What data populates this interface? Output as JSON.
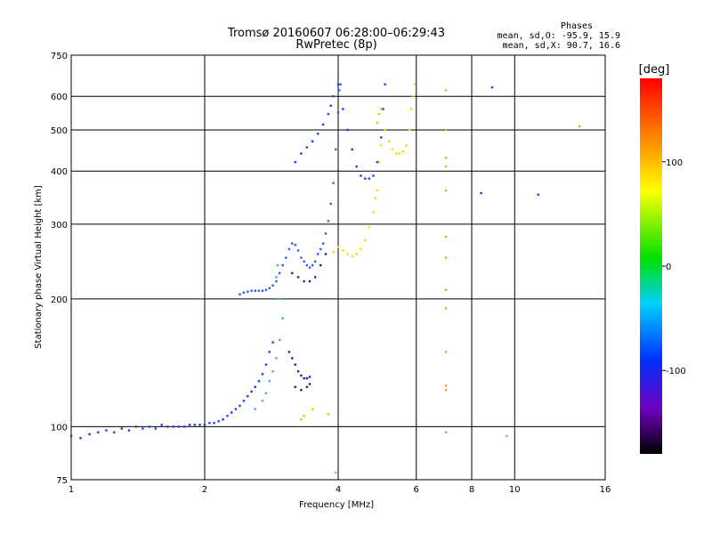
{
  "chart_data": {
    "type": "scatter",
    "title": "Tromsø 20160607 06:28:00–06:29:43",
    "subtitle": "RwPretec (8p)",
    "xlabel": "Frequency [MHz]",
    "ylabel": "Stationary phase Virtual Height [km]",
    "x_scale": "log",
    "y_scale": "log",
    "xlim": [
      1,
      16
    ],
    "ylim": [
      75,
      750
    ],
    "x_ticks": [
      1,
      2,
      4,
      6,
      8,
      10,
      16
    ],
    "y_ticks": [
      75,
      100,
      200,
      300,
      400,
      500,
      600,
      750
    ],
    "grid": true,
    "stats": {
      "title": "Phases",
      "line_o": "mean, sd,O: -95.9, 15.9",
      "line_x": "mean, sd,X:  90.7, 16.6"
    },
    "colorbar": {
      "label": "[deg]",
      "min": -180,
      "max": 180,
      "ticks": [
        100,
        0,
        -100
      ]
    },
    "point_groups": [
      {
        "color": "#1a3cf0",
        "points": [
          [
            1,
            95
          ],
          [
            1.05,
            94
          ],
          [
            1.1,
            96
          ],
          [
            1.15,
            97
          ],
          [
            1.2,
            98
          ],
          [
            1.25,
            97
          ],
          [
            1.3,
            99
          ],
          [
            1.35,
            98
          ],
          [
            1.4,
            100
          ],
          [
            1.45,
            99
          ],
          [
            1.5,
            100
          ],
          [
            1.55,
            99
          ],
          [
            1.6,
            101
          ],
          [
            1.65,
            100
          ],
          [
            1.7,
            100
          ],
          [
            1.75,
            100
          ],
          [
            1.8,
            100
          ],
          [
            1.85,
            101
          ],
          [
            1.9,
            101
          ],
          [
            1.95,
            101
          ],
          [
            2.0,
            101
          ],
          [
            2.05,
            102
          ],
          [
            2.1,
            102
          ],
          [
            2.15,
            103
          ],
          [
            2.2,
            104
          ],
          [
            2.25,
            106
          ],
          [
            2.3,
            108
          ],
          [
            2.35,
            110
          ],
          [
            2.4,
            112
          ],
          [
            2.45,
            115
          ],
          [
            2.5,
            118
          ],
          [
            2.55,
            121
          ],
          [
            2.6,
            124
          ],
          [
            2.65,
            128
          ],
          [
            2.7,
            133
          ],
          [
            2.75,
            140
          ],
          [
            2.8,
            150
          ],
          [
            2.85,
            158
          ]
        ]
      },
      {
        "color": "#2a5cff",
        "points": [
          [
            2.4,
            205
          ],
          [
            2.45,
            207
          ],
          [
            2.5,
            208
          ],
          [
            2.55,
            209
          ],
          [
            2.6,
            209
          ],
          [
            2.65,
            209
          ],
          [
            2.7,
            209
          ],
          [
            2.75,
            210
          ],
          [
            2.8,
            212
          ],
          [
            2.85,
            215
          ],
          [
            2.9,
            220
          ],
          [
            2.95,
            230
          ],
          [
            3.0,
            240
          ],
          [
            3.05,
            250
          ],
          [
            3.1,
            262
          ],
          [
            3.15,
            270
          ],
          [
            3.2,
            268
          ],
          [
            3.25,
            260
          ],
          [
            3.3,
            250
          ],
          [
            3.35,
            245
          ],
          [
            3.4,
            240
          ],
          [
            3.45,
            237
          ],
          [
            3.5,
            240
          ],
          [
            3.55,
            245
          ],
          [
            3.6,
            255
          ],
          [
            3.65,
            262
          ],
          [
            3.7,
            270
          ],
          [
            3.75,
            285
          ],
          [
            3.8,
            305
          ],
          [
            3.85,
            335
          ],
          [
            3.9,
            375
          ],
          [
            3.95,
            450
          ],
          [
            4.0,
            550
          ],
          [
            4.02,
            620
          ],
          [
            4.05,
            640
          ]
        ]
      },
      {
        "color": "#1a3cf0",
        "points": [
          [
            3.2,
            420
          ],
          [
            3.3,
            440
          ],
          [
            3.4,
            455
          ],
          [
            3.5,
            470
          ],
          [
            3.6,
            490
          ],
          [
            3.7,
            515
          ],
          [
            3.8,
            545
          ],
          [
            3.85,
            570
          ],
          [
            3.9,
            600
          ],
          [
            4.0,
            640
          ],
          [
            4.1,
            560
          ],
          [
            4.2,
            500
          ],
          [
            4.3,
            450
          ],
          [
            4.4,
            410
          ],
          [
            4.5,
            390
          ],
          [
            4.6,
            384
          ],
          [
            4.7,
            384
          ],
          [
            4.8,
            390
          ],
          [
            4.9,
            420
          ],
          [
            5.0,
            480
          ],
          [
            5.05,
            560
          ],
          [
            5.1,
            640
          ]
        ]
      },
      {
        "color": "#2a2090",
        "points": [
          [
            3.1,
            150
          ],
          [
            3.15,
            145
          ],
          [
            3.2,
            140
          ],
          [
            3.25,
            135
          ],
          [
            3.3,
            132
          ],
          [
            3.35,
            130
          ],
          [
            3.4,
            130
          ],
          [
            3.45,
            131
          ],
          [
            3.2,
            124
          ],
          [
            3.3,
            122
          ],
          [
            3.4,
            124
          ],
          [
            3.45,
            126
          ],
          [
            3.15,
            230
          ],
          [
            3.25,
            225
          ],
          [
            3.35,
            220
          ],
          [
            3.45,
            220
          ],
          [
            3.55,
            225
          ],
          [
            3.65,
            240
          ],
          [
            3.75,
            255
          ]
        ]
      },
      {
        "color": "#30b8f0",
        "points": [
          [
            2.6,
            110
          ],
          [
            2.7,
            115
          ],
          [
            2.75,
            120
          ],
          [
            2.8,
            128
          ],
          [
            2.85,
            135
          ],
          [
            2.9,
            145
          ],
          [
            2.95,
            160
          ],
          [
            3.0,
            180
          ],
          [
            2.95,
            200
          ],
          [
            2.9,
            225
          ],
          [
            2.92,
            240
          ]
        ]
      },
      {
        "color": "#f0e000",
        "points": [
          [
            3.9,
            258
          ],
          [
            4.0,
            265
          ],
          [
            4.1,
            260
          ],
          [
            4.2,
            255
          ],
          [
            4.3,
            252
          ],
          [
            4.4,
            255
          ],
          [
            4.5,
            262
          ],
          [
            4.6,
            275
          ],
          [
            4.7,
            295
          ],
          [
            4.8,
            320
          ],
          [
            4.85,
            345
          ],
          [
            4.9,
            360
          ],
          [
            4.95,
            420
          ],
          [
            5.0,
            460
          ],
          [
            5.1,
            500
          ],
          [
            5.2,
            470
          ],
          [
            5.3,
            450
          ],
          [
            5.4,
            440
          ],
          [
            5.5,
            440
          ],
          [
            5.6,
            445
          ],
          [
            5.7,
            460
          ],
          [
            5.8,
            500
          ],
          [
            5.85,
            560
          ],
          [
            5.9,
            600
          ],
          [
            5.95,
            640
          ]
        ]
      },
      {
        "color": "#f0c000",
        "points": [
          [
            4.9,
            520
          ],
          [
            4.95,
            545
          ],
          [
            5.0,
            560
          ],
          [
            3.3,
            104
          ],
          [
            3.35,
            106
          ],
          [
            3.5,
            110
          ],
          [
            3.8,
            107
          ]
        ]
      },
      {
        "color": "#f0a040",
        "points": [
          [
            7.0,
            620
          ],
          [
            7.0,
            500
          ],
          [
            7.0,
            430
          ],
          [
            7.0,
            410
          ],
          [
            7.0,
            360
          ],
          [
            7.0,
            280
          ],
          [
            7.0,
            250
          ],
          [
            7.0,
            210
          ],
          [
            7.0,
            190
          ],
          [
            7.0,
            150
          ],
          [
            7.0,
            125
          ],
          [
            7.0,
            122
          ],
          [
            7.0,
            97
          ],
          [
            3.95,
            78
          ],
          [
            14.0,
            510
          ]
        ]
      },
      {
        "color": "#1a3cf0",
        "points": [
          [
            8.4,
            355
          ],
          [
            8.9,
            630
          ],
          [
            11.3,
            352
          ]
        ]
      },
      {
        "color": "#60e040",
        "points": [
          [
            9.6,
            95
          ]
        ]
      }
    ]
  }
}
